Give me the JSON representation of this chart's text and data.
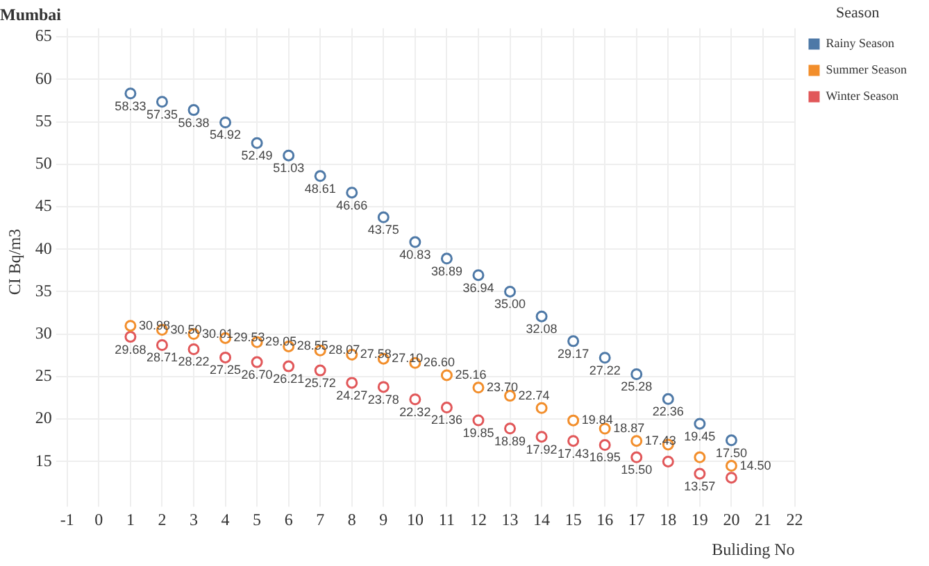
{
  "chart_data": {
    "type": "scatter",
    "title": "Mumbai",
    "xlabel": "Buliding No",
    "ylabel": "CI Bq/m3",
    "legend_title": "Season",
    "legend": "top right",
    "grid": true,
    "marker": "circle",
    "x": [
      1,
      2,
      3,
      4,
      5,
      6,
      7,
      8,
      9,
      10,
      11,
      12,
      13,
      14,
      15,
      16,
      17,
      18,
      19,
      20
    ],
    "xlim": [
      -1,
      22
    ],
    "xticks": [
      -1,
      0,
      1,
      2,
      3,
      4,
      5,
      6,
      7,
      8,
      9,
      10,
      11,
      12,
      13,
      14,
      15,
      16,
      17,
      18,
      19,
      20,
      21,
      22
    ],
    "ylim": [
      11,
      66
    ],
    "yticks": [
      15,
      20,
      25,
      30,
      35,
      40,
      45,
      50,
      55,
      60,
      65
    ],
    "series": [
      {
        "name": "Rainy Season",
        "color": "#4e79a7",
        "values": [
          58.33,
          57.35,
          56.38,
          54.92,
          52.49,
          51.03,
          48.61,
          46.66,
          43.75,
          40.83,
          38.89,
          36.94,
          35.0,
          32.08,
          29.17,
          27.22,
          25.28,
          22.36,
          19.45,
          17.5
        ],
        "value_labels": [
          "58.33",
          "57.35",
          "56.38",
          "54.92",
          "52.49",
          "51.03",
          "48.61",
          "46.66",
          "43.75",
          "40.83",
          "38.89",
          "36.94",
          "35.00",
          "32.08",
          "29.17",
          "27.22",
          "25.28",
          "22.36",
          "19.45",
          "17.50"
        ]
      },
      {
        "name": "Summer Season",
        "color": "#f28e2b",
        "values": [
          30.98,
          30.5,
          30.01,
          29.53,
          29.05,
          28.55,
          28.07,
          27.58,
          27.1,
          26.6,
          25.16,
          23.7,
          22.74,
          21.3,
          19.84,
          18.87,
          17.43,
          17.0,
          15.5,
          14.5
        ],
        "value_labels": [
          "30.98",
          "30.50",
          "30.01",
          "29.53",
          "29.05",
          "28.55",
          "28.07",
          "27.58",
          "27.10",
          "26.60",
          "25.16",
          "23.70",
          "22.74",
          null,
          "19.84",
          "18.87",
          "17.43",
          null,
          null,
          "14.50"
        ]
      },
      {
        "name": "Winter Season",
        "color": "#e15759",
        "values": [
          29.68,
          28.71,
          28.22,
          27.25,
          26.7,
          26.21,
          25.72,
          24.27,
          23.78,
          22.32,
          21.36,
          19.85,
          18.89,
          17.92,
          17.43,
          16.95,
          15.5,
          15.0,
          13.57,
          13.1
        ],
        "value_labels": [
          "29.68",
          "28.71",
          "28.22",
          "27.25",
          "26.70",
          "26.21",
          "25.72",
          "24.27",
          "23.78",
          "22.32",
          "21.36",
          "19.85",
          "18.89",
          "17.92",
          "17.43",
          "16.95",
          "15.50",
          null,
          "13.57",
          null
        ]
      }
    ]
  }
}
